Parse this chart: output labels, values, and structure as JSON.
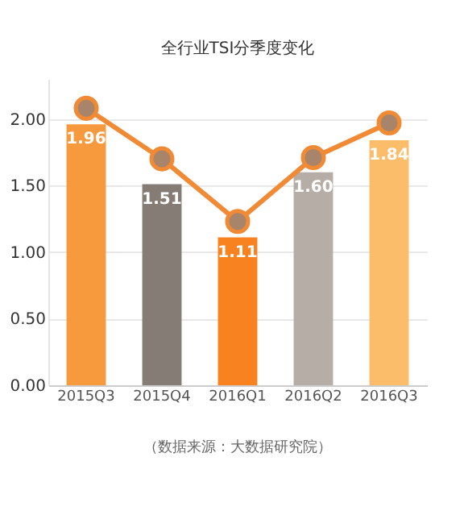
{
  "chart_data": {
    "type": "bar",
    "title": "全行业TSI分季度变化",
    "categories": [
      "2015Q3",
      "2015Q4",
      "2016Q1",
      "2016Q2",
      "2016Q3"
    ],
    "series": [
      {
        "colors": [
          "#f79a3e",
          "#857c75",
          "#f7821f",
          "#b5ada6",
          "#fbbd6a"
        ],
        "values": [
          1.96,
          1.51,
          1.11,
          1.6,
          1.84
        ],
        "value_labels": [
          "1.96",
          "1.51",
          "1.11",
          "1.60",
          "1.84"
        ]
      },
      {
        "type": "line",
        "color": "#f08a35",
        "values": [
          2.08,
          1.7,
          1.23,
          1.71,
          1.97
        ],
        "marker": "circle"
      }
    ],
    "ylim": [
      0,
      2.3
    ],
    "yticks": [
      {
        "value": 0,
        "label": "0.00"
      },
      {
        "value": 0.5,
        "label": "0.50"
      },
      {
        "value": 1,
        "label": "1.00"
      },
      {
        "value": 1.5,
        "label": "1.50"
      },
      {
        "value": 2,
        "label": "2.00"
      }
    ],
    "grid": "y",
    "annotations": [
      "（数据来源：大数据研究院）"
    ]
  }
}
